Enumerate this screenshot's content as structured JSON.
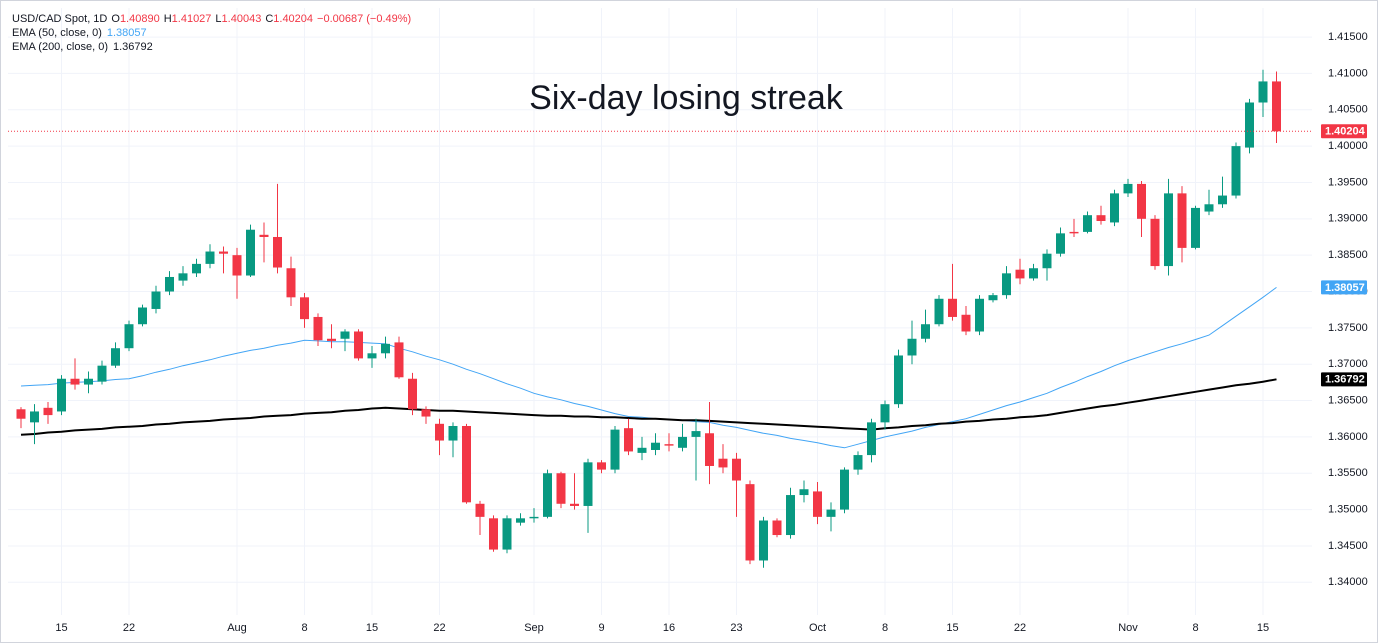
{
  "chart_data": {
    "type": "candlestick",
    "header": {
      "symbol": "USD/CAD Spot, 1D",
      "ohlc_labels": [
        "O",
        "H",
        "L",
        "C"
      ],
      "ohlc_values": [
        "1.40890",
        "1.41027",
        "1.40043",
        "1.40204"
      ],
      "change": "−0.00687 (−0.49%)"
    },
    "annotation": "Six-day losing streak",
    "categories": [
      null,
      null,
      null,
      "15",
      null,
      null,
      null,
      null,
      "22",
      null,
      null,
      null,
      null,
      null,
      null,
      null,
      "Aug",
      null,
      null,
      null,
      null,
      "8",
      null,
      null,
      null,
      null,
      "15",
      null,
      null,
      null,
      null,
      "22",
      null,
      null,
      null,
      null,
      null,
      null,
      "Sep",
      null,
      null,
      null,
      null,
      "9",
      null,
      null,
      null,
      null,
      "16",
      null,
      null,
      null,
      null,
      "23",
      null,
      null,
      null,
      null,
      null,
      "Oct",
      null,
      null,
      null,
      null,
      "8",
      null,
      null,
      null,
      null,
      "15",
      null,
      null,
      null,
      null,
      "22",
      null,
      null,
      null,
      null,
      null,
      null,
      null,
      "Nov",
      null,
      null,
      null,
      null,
      "8",
      null,
      null,
      null,
      null,
      "15",
      null
    ],
    "open": [
      1.3638,
      1.362,
      1.364,
      1.3635,
      1.368,
      1.3672,
      1.3676,
      1.3698,
      1.3722,
      1.3755,
      1.3776,
      1.38,
      1.3815,
      1.3825,
      1.3838,
      1.3855,
      1.385,
      1.3822,
      1.3878,
      1.3875,
      1.3832,
      1.3792,
      1.3765,
      1.3735,
      1.3735,
      1.3745,
      1.3708,
      1.3715,
      1.373,
      1.368,
      1.3638,
      1.3618,
      1.3595,
      1.3615,
      1.3508,
      1.3488,
      1.3445,
      1.3482,
      1.3488,
      1.349,
      1.355,
      1.3508,
      1.3505,
      1.3565,
      1.3555,
      1.3612,
      1.3578,
      1.3582,
      1.359,
      1.3585,
      1.36,
      1.3605,
      1.357,
      1.357,
      1.3535,
      1.343,
      1.3485,
      1.3465,
      1.352,
      1.3525,
      1.349,
      1.35,
      1.3555,
      1.3575,
      1.362,
      1.3645,
      1.3712,
      1.3735,
      1.3755,
      1.379,
      1.3768,
      1.3745,
      1.3788,
      1.3795,
      1.383,
      1.3818,
      1.3832,
      1.3852,
      1.3882,
      1.3882,
      1.3905,
      1.3895,
      1.3935,
      1.3948,
      1.39,
      1.3835,
      1.3935,
      1.386,
      1.391,
      1.392,
      1.3932,
      1.3998,
      1.406,
      1.4089
    ],
    "high": [
      1.3641,
      1.3645,
      1.3648,
      1.3685,
      1.3708,
      1.369,
      1.3705,
      1.373,
      1.376,
      1.3782,
      1.3808,
      1.3828,
      1.3835,
      1.3845,
      1.3865,
      1.3862,
      1.386,
      1.3892,
      1.3895,
      1.3948,
      1.3848,
      1.3798,
      1.377,
      1.3755,
      1.3748,
      1.3748,
      1.3725,
      1.3738,
      1.3738,
      1.3688,
      1.3642,
      1.3625,
      1.362,
      1.3618,
      1.3512,
      1.3492,
      1.3492,
      1.3495,
      1.3502,
      1.3555,
      1.3552,
      1.355,
      1.357,
      1.3568,
      1.3615,
      1.3625,
      1.36,
      1.3605,
      1.3605,
      1.3618,
      1.3625,
      1.3648,
      1.359,
      1.3578,
      1.354,
      1.349,
      1.3488,
      1.353,
      1.354,
      1.3538,
      1.351,
      1.3558,
      1.358,
      1.3625,
      1.365,
      1.372,
      1.376,
      1.3775,
      1.3795,
      1.3838,
      1.378,
      1.3795,
      1.3798,
      1.3835,
      1.3845,
      1.3838,
      1.3858,
      1.3888,
      1.39,
      1.391,
      1.3918,
      1.394,
      1.3955,
      1.3952,
      1.3905,
      1.3955,
      1.3945,
      1.3918,
      1.394,
      1.3958,
      1.4005,
      1.4065,
      1.4105,
      1.41027
    ],
    "low": [
      1.3612,
      1.359,
      1.3618,
      1.363,
      1.3665,
      1.366,
      1.3672,
      1.3695,
      1.3718,
      1.3752,
      1.377,
      1.3795,
      1.3808,
      1.382,
      1.3832,
      1.3825,
      1.379,
      1.382,
      1.384,
      1.3825,
      1.378,
      1.375,
      1.3725,
      1.3722,
      1.3718,
      1.3705,
      1.3695,
      1.3708,
      1.368,
      1.363,
      1.3618,
      1.3575,
      1.3572,
      1.3508,
      1.3465,
      1.3442,
      1.344,
      1.3478,
      1.3482,
      1.3488,
      1.3502,
      1.35,
      1.3468,
      1.355,
      1.355,
      1.3575,
      1.3568,
      1.3575,
      1.358,
      1.358,
      1.354,
      1.3535,
      1.355,
      1.349,
      1.3425,
      1.342,
      1.3462,
      1.346,
      1.351,
      1.348,
      1.347,
      1.3495,
      1.3548,
      1.3565,
      1.361,
      1.364,
      1.37,
      1.373,
      1.3752,
      1.376,
      1.374,
      1.374,
      1.3785,
      1.379,
      1.381,
      1.3815,
      1.3815,
      1.3848,
      1.3875,
      1.388,
      1.3892,
      1.389,
      1.393,
      1.3875,
      1.383,
      1.3822,
      1.384,
      1.3858,
      1.3905,
      1.3915,
      1.3928,
      1.399,
      1.404,
      1.40043
    ],
    "close": [
      1.3625,
      1.3635,
      1.363,
      1.368,
      1.3672,
      1.368,
      1.3698,
      1.3722,
      1.3755,
      1.3778,
      1.38,
      1.382,
      1.3825,
      1.3838,
      1.3855,
      1.3852,
      1.3822,
      1.3885,
      1.3875,
      1.3833,
      1.3792,
      1.3762,
      1.3733,
      1.3732,
      1.3745,
      1.3708,
      1.3715,
      1.3728,
      1.3682,
      1.3638,
      1.3628,
      1.3595,
      1.3615,
      1.351,
      1.349,
      1.3445,
      1.3488,
      1.3488,
      1.349,
      1.355,
      1.3508,
      1.3505,
      1.3565,
      1.3555,
      1.361,
      1.358,
      1.3585,
      1.3592,
      1.3588,
      1.36,
      1.3608,
      1.356,
      1.3558,
      1.354,
      1.343,
      1.3485,
      1.3465,
      1.352,
      1.3528,
      1.349,
      1.35,
      1.3555,
      1.3575,
      1.362,
      1.3645,
      1.3712,
      1.3735,
      1.3755,
      1.379,
      1.3765,
      1.3745,
      1.379,
      1.3795,
      1.3825,
      1.3818,
      1.3832,
      1.3852,
      1.388,
      1.388,
      1.3905,
      1.3897,
      1.3935,
      1.3948,
      1.39,
      1.3835,
      1.3935,
      1.386,
      1.3915,
      1.392,
      1.3932,
      1.4,
      1.406,
      1.4089,
      1.40204
    ],
    "up_color": "#089981",
    "down_color": "#f23645",
    "lines": [
      {
        "name": "EMA (50, close, 0)",
        "color": "#42a5f5",
        "values": [
          1.367,
          1.3671,
          1.3672,
          1.3674,
          1.3675,
          1.3676,
          1.3677,
          1.3679,
          1.368,
          1.3684,
          1.3689,
          1.3693,
          1.3698,
          1.3702,
          1.3706,
          1.3711,
          1.3715,
          1.3719,
          1.3722,
          1.3726,
          1.3729,
          1.3733,
          1.3732,
          1.3731,
          1.3731,
          1.373,
          1.3729,
          1.3728,
          1.3722,
          1.3717,
          1.3711,
          1.3706,
          1.37,
          1.3693,
          1.3687,
          1.368,
          1.3673,
          1.3667,
          1.366,
          1.3655,
          1.3651,
          1.3646,
          1.3642,
          1.3637,
          1.3632,
          1.3628,
          1.3627,
          1.3625,
          1.3624,
          1.3623,
          1.3621,
          1.362,
          1.3616,
          1.3613,
          1.3609,
          1.3605,
          1.3602,
          1.3598,
          1.3595,
          1.3592,
          1.3588,
          1.3585,
          1.359,
          1.3595,
          1.36,
          1.3604,
          1.3608,
          1.3613,
          1.3617,
          1.3621,
          1.3625,
          1.3631,
          1.3637,
          1.3643,
          1.3648,
          1.3654,
          1.366,
          1.3668,
          1.3675,
          1.3683,
          1.369,
          1.3698,
          1.3705,
          1.3711,
          1.3717,
          1.3723,
          1.3728,
          1.3734,
          1.374,
          1.3753,
          1.3766,
          1.3779,
          1.3792,
          1.38057
        ]
      },
      {
        "name": "EMA (200, close, 0)",
        "color": "#000000",
        "values": [
          1.3603,
          1.3604,
          1.3606,
          1.3607,
          1.3609,
          1.361,
          1.3611,
          1.3613,
          1.3614,
          1.3615,
          1.3617,
          1.3618,
          1.362,
          1.3621,
          1.3622,
          1.3624,
          1.3625,
          1.3626,
          1.3628,
          1.3629,
          1.363,
          1.3632,
          1.3633,
          1.3634,
          1.3636,
          1.3637,
          1.3639,
          1.364,
          1.3639,
          1.3638,
          1.3637,
          1.3636,
          1.3636,
          1.3635,
          1.3634,
          1.3633,
          1.3632,
          1.3631,
          1.363,
          1.3629,
          1.3629,
          1.3628,
          1.3628,
          1.3627,
          1.3627,
          1.3626,
          1.3625,
          1.3625,
          1.3624,
          1.3623,
          1.3623,
          1.3622,
          1.3621,
          1.362,
          1.3619,
          1.3618,
          1.3617,
          1.3616,
          1.3615,
          1.3614,
          1.3613,
          1.3612,
          1.3611,
          1.361,
          1.3612,
          1.3613,
          1.3615,
          1.3616,
          1.3618,
          1.3619,
          1.3621,
          1.3622,
          1.3624,
          1.3625,
          1.3627,
          1.3628,
          1.363,
          1.3633,
          1.3636,
          1.3639,
          1.3642,
          1.3644,
          1.3647,
          1.365,
          1.3653,
          1.3656,
          1.3659,
          1.3662,
          1.3665,
          1.3668,
          1.3671,
          1.3673,
          1.3676,
          1.36792
        ]
      }
    ],
    "ylim": [
      1.3355,
      1.419
    ],
    "yticks": [
      {
        "value": 1.34,
        "label": "1.34000"
      },
      {
        "value": 1.345,
        "label": "1.34500"
      },
      {
        "value": 1.35,
        "label": "1.35000"
      },
      {
        "value": 1.355,
        "label": "1.35500"
      },
      {
        "value": 1.36,
        "label": "1.36000"
      },
      {
        "value": 1.365,
        "label": "1.36500"
      },
      {
        "value": 1.37,
        "label": "1.37000"
      },
      {
        "value": 1.375,
        "label": "1.37500"
      },
      {
        "value": 1.38,
        "label": "1.38000"
      },
      {
        "value": 1.385,
        "label": "1.38500"
      },
      {
        "value": 1.39,
        "label": "1.39000"
      },
      {
        "value": 1.395,
        "label": "1.39500"
      },
      {
        "value": 1.4,
        "label": "1.40000"
      },
      {
        "value": 1.405,
        "label": "1.40500"
      },
      {
        "value": 1.41,
        "label": "1.41000"
      },
      {
        "value": 1.415,
        "label": "1.41500"
      }
    ],
    "grid": true
  }
}
